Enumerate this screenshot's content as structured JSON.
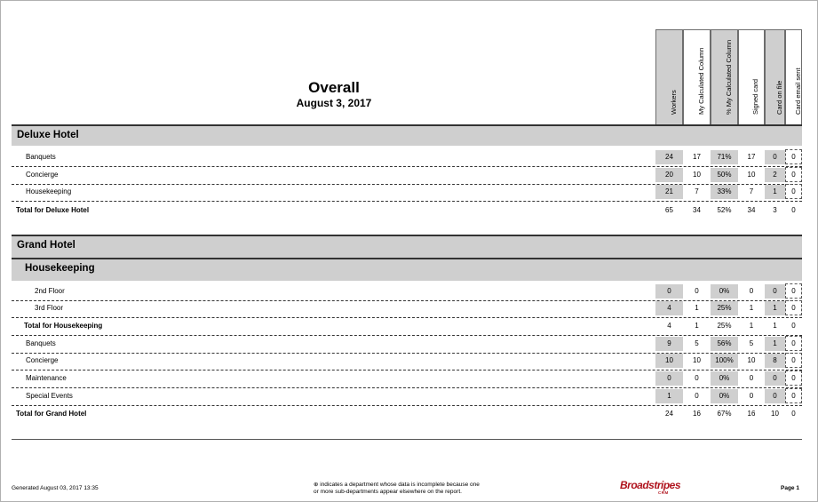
{
  "report": {
    "title": "Overall",
    "date": "August 3, 2017"
  },
  "columns": [
    "Workers",
    "My Calculated Column",
    "% My Calculated Column",
    "Signed card",
    "Card on file",
    "Card email sent"
  ],
  "sections": {
    "deluxe": {
      "name": "Deluxe Hotel",
      "rows": [
        {
          "label": "Banquets",
          "values": [
            "24",
            "17",
            "71%",
            "17",
            "0",
            "0"
          ]
        },
        {
          "label": "Concierge",
          "values": [
            "20",
            "10",
            "50%",
            "10",
            "2",
            "0"
          ]
        },
        {
          "label": "Housekeeping",
          "values": [
            "21",
            "7",
            "33%",
            "7",
            "1",
            "0"
          ]
        }
      ],
      "total": {
        "label": "Total for Deluxe Hotel",
        "values": [
          "65",
          "34",
          "52%",
          "34",
          "3",
          "0"
        ]
      }
    },
    "grand": {
      "name": "Grand Hotel",
      "sub": {
        "name": "Housekeeping",
        "rows": [
          {
            "label": "2nd Floor",
            "values": [
              "0",
              "0",
              "0%",
              "0",
              "0",
              "0"
            ]
          },
          {
            "label": "3rd Floor",
            "values": [
              "4",
              "1",
              "25%",
              "1",
              "1",
              "0"
            ]
          }
        ],
        "total": {
          "label": "Total for Housekeeping",
          "values": [
            "4",
            "1",
            "25%",
            "1",
            "1",
            "0"
          ]
        }
      },
      "rows": [
        {
          "label": "Banquets",
          "values": [
            "9",
            "5",
            "56%",
            "5",
            "1",
            "0"
          ]
        },
        {
          "label": "Concierge",
          "values": [
            "10",
            "10",
            "100%",
            "10",
            "8",
            "0"
          ]
        },
        {
          "label": "Maintenance",
          "values": [
            "0",
            "0",
            "0%",
            "0",
            "0",
            "0"
          ]
        },
        {
          "label": "Special Events",
          "values": [
            "1",
            "0",
            "0%",
            "0",
            "0",
            "0"
          ]
        }
      ],
      "total": {
        "label": "Total for Grand Hotel",
        "values": [
          "24",
          "16",
          "67%",
          "16",
          "10",
          "0"
        ]
      }
    }
  },
  "footer": {
    "generated": "Generated August 03, 2017 13:35",
    "note_line1": "⊕ indicates a department whose data is incomplete because one",
    "note_line2": "or more sub-departments appear elsewhere on the report.",
    "logo": "Broadstripes",
    "logo_sub": "CRM",
    "page": "Page 1"
  },
  "colors": {
    "shade": "#cfcfcf",
    "logo": "#b0141e"
  }
}
